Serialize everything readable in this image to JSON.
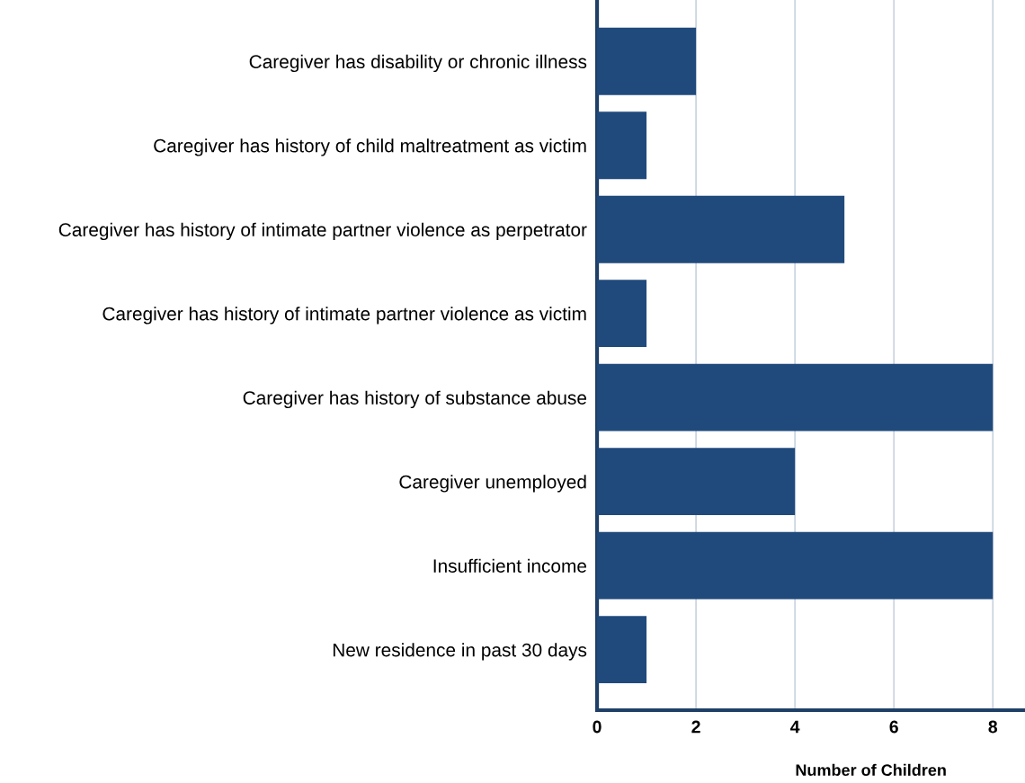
{
  "chart_data": {
    "type": "bar",
    "orientation": "horizontal",
    "xlabel": "Number of Children",
    "categories": [
      "Caregiver has disability or chronic illness",
      "Caregiver has history of child maltreatment as victim",
      "Caregiver has history of intimate partner violence as perpetrator",
      "Caregiver has history of intimate partner violence as victim",
      "Caregiver has history of substance abuse",
      "Caregiver unemployed",
      "Insufficient income",
      "New residence in past 30 days"
    ],
    "values": [
      2,
      1,
      5,
      1,
      8,
      4,
      8,
      1
    ],
    "color": "#204a7c",
    "xlim": [
      0,
      8.65
    ],
    "xticks": [
      0,
      2,
      4,
      6,
      8
    ],
    "grid": "x"
  }
}
